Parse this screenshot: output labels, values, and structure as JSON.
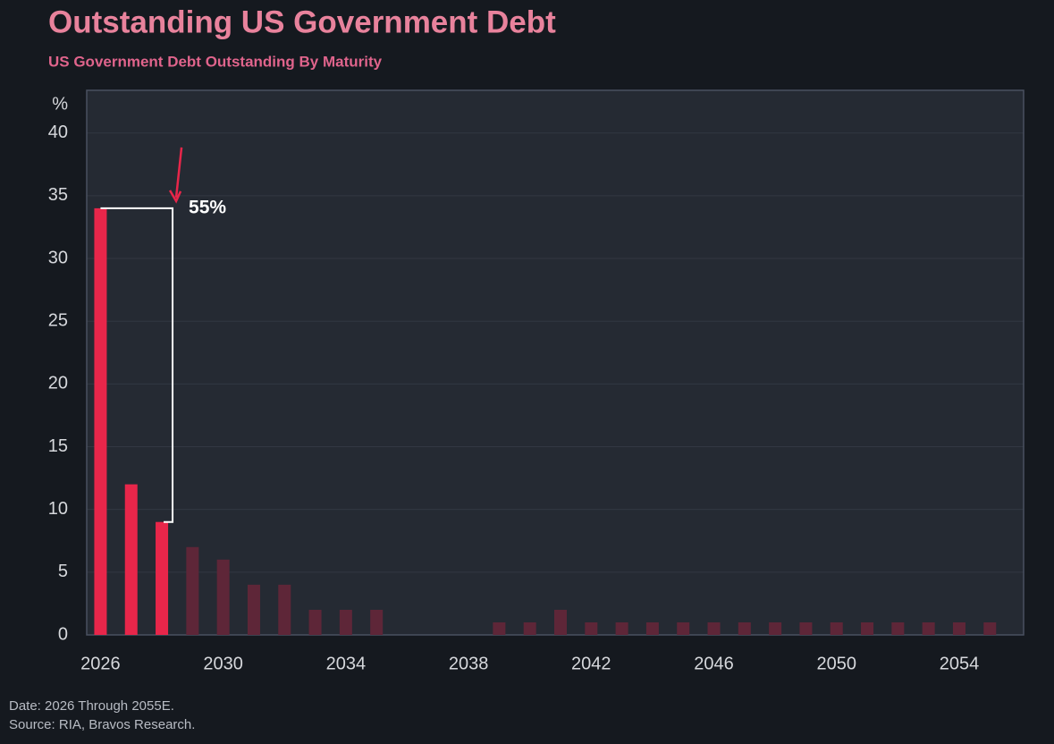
{
  "chart_data": {
    "type": "bar",
    "title": "Outstanding US Government Debt",
    "subtitle": "US Government Debt Outstanding By Maturity",
    "y_label": "%",
    "x": [
      2026,
      2027,
      2028,
      2029,
      2030,
      2031,
      2032,
      2033,
      2034,
      2035,
      2036,
      2037,
      2038,
      2039,
      2040,
      2041,
      2042,
      2043,
      2044,
      2045,
      2046,
      2047,
      2048,
      2049,
      2050,
      2051,
      2052,
      2053,
      2054,
      2055
    ],
    "values": [
      34,
      12,
      9,
      7,
      6,
      4,
      4,
      2,
      2,
      2,
      0,
      0,
      0,
      1,
      1,
      2,
      1,
      1,
      1,
      1,
      1,
      1,
      1,
      1,
      1,
      1,
      1,
      1,
      1,
      1
    ],
    "colors": [
      "#e8264a",
      "#e8264a",
      "#e8264a",
      "#5e2638",
      "#5e2638",
      "#5e2638",
      "#5e2638",
      "#5e2638",
      "#5e2638",
      "#5e2638",
      "#5e2638",
      "#5e2638",
      "#5e2638",
      "#5e2638",
      "#5e2638",
      "#5e2638",
      "#5e2638",
      "#5e2638",
      "#5e2638",
      "#5e2638",
      "#5e2638",
      "#5e2638",
      "#5e2638",
      "#5e2638",
      "#5e2638",
      "#5e2638",
      "#5e2638",
      "#5e2638",
      "#5e2638",
      "#5e2638"
    ],
    "xlim": [
      2025.55,
      2056.1
    ],
    "xticks": [
      2026,
      2030,
      2034,
      2038,
      2042,
      2046,
      2050,
      2054
    ],
    "ylim": [
      0,
      43.4
    ],
    "yticks": [
      0,
      5,
      10,
      15,
      20,
      25,
      30,
      35,
      40
    ],
    "grid": true,
    "annotation": "55%",
    "notes": [
      "Date: 2026 Through 2055E.",
      "Source: RIA, Bravos Research."
    ]
  }
}
